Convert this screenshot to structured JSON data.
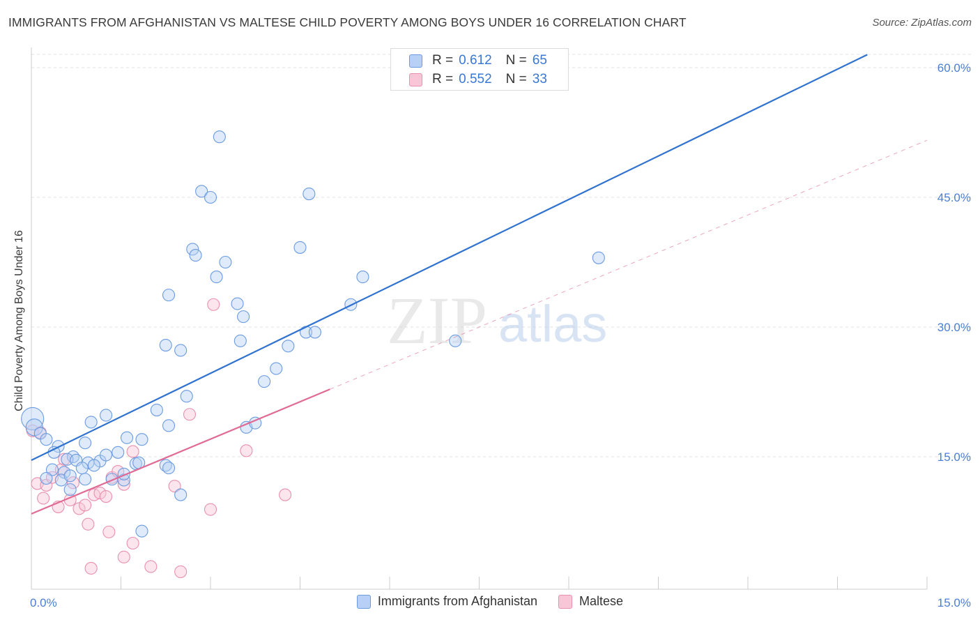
{
  "header": {
    "title": "IMMIGRANTS FROM AFGHANISTAN VS MALTESE CHILD POVERTY AMONG BOYS UNDER 16 CORRELATION CHART",
    "source": "Source: ZipAtlas.com"
  },
  "watermark": {
    "zip": "ZIP",
    "atlas": "atlas"
  },
  "colors": {
    "afghanistan_fill": "#b8d0f5",
    "afghanistan_stroke": "#6a9be0",
    "afghanistan_line": "#2f72d0",
    "maltese_fill": "#f8c6d6",
    "maltese_stroke": "#e890ae",
    "maltese_line": "#e06a94",
    "tick_label": "#4a7fd4"
  },
  "chart_data": {
    "type": "scatter",
    "xlabel": "",
    "ylabel": "Child Poverty Among Boys Under 16",
    "xlim": [
      0,
      15
    ],
    "ylim": [
      0,
      60
    ],
    "x_tick_labels": [
      {
        "value": 0,
        "label": "0.0%"
      },
      {
        "value": 15,
        "label": "15.0%"
      }
    ],
    "y_tick_labels": [
      {
        "value": 15,
        "label": "15.0%"
      },
      {
        "value": 30,
        "label": "30.0%"
      },
      {
        "value": 45,
        "label": "45.0%"
      },
      {
        "value": 60,
        "label": "60.0%"
      }
    ],
    "grid": true,
    "legend_stats": [
      {
        "r_label": "R =",
        "r_value": "0.612",
        "n_label": "N =",
        "n_value": "65"
      },
      {
        "r_label": "R =",
        "r_value": "0.552",
        "n_label": "N =",
        "n_value": "33"
      }
    ],
    "series": [
      {
        "name": "Immigrants from Afghanistan",
        "trend": {
          "x0": 0,
          "y0": 14.6,
          "x1": 14,
          "y1": 61.5
        },
        "points": [
          [
            0.02,
            19.4
          ],
          [
            0.05,
            18.4
          ],
          [
            0.15,
            17.7
          ],
          [
            0.25,
            17.0
          ],
          [
            0.45,
            16.2
          ],
          [
            0.38,
            15.5
          ],
          [
            0.7,
            15.0
          ],
          [
            0.9,
            16.6
          ],
          [
            0.6,
            14.7
          ],
          [
            0.75,
            14.6
          ],
          [
            0.95,
            14.3
          ],
          [
            1.15,
            14.5
          ],
          [
            0.35,
            13.5
          ],
          [
            0.55,
            13.2
          ],
          [
            0.85,
            13.7
          ],
          [
            1.05,
            14.0
          ],
          [
            1.25,
            15.2
          ],
          [
            1.45,
            15.5
          ],
          [
            1.6,
            17.2
          ],
          [
            1.75,
            14.2
          ],
          [
            0.25,
            12.5
          ],
          [
            0.5,
            12.3
          ],
          [
            0.65,
            12.8
          ],
          [
            0.9,
            12.4
          ],
          [
            1.35,
            12.4
          ],
          [
            1.55,
            12.3
          ],
          [
            1.8,
            14.3
          ],
          [
            1.85,
            17.0
          ],
          [
            2.25,
            14.0
          ],
          [
            0.65,
            11.2
          ],
          [
            1.25,
            19.8
          ],
          [
            1.0,
            19.0
          ],
          [
            2.1,
            20.4
          ],
          [
            2.3,
            18.6
          ],
          [
            2.6,
            22.0
          ],
          [
            2.25,
            27.9
          ],
          [
            2.5,
            27.3
          ],
          [
            2.3,
            33.7
          ],
          [
            2.7,
            39.0
          ],
          [
            2.75,
            38.3
          ],
          [
            2.85,
            45.7
          ],
          [
            3.0,
            45.0
          ],
          [
            3.15,
            52.0
          ],
          [
            3.1,
            35.8
          ],
          [
            3.25,
            37.5
          ],
          [
            3.45,
            32.7
          ],
          [
            3.55,
            31.2
          ],
          [
            3.6,
            18.4
          ],
          [
            3.75,
            18.9
          ],
          [
            3.5,
            28.4
          ],
          [
            3.9,
            23.7
          ],
          [
            4.1,
            25.2
          ],
          [
            4.3,
            27.8
          ],
          [
            4.6,
            29.4
          ],
          [
            4.75,
            29.4
          ],
          [
            4.5,
            39.2
          ],
          [
            4.65,
            45.4
          ],
          [
            5.35,
            32.6
          ],
          [
            5.55,
            35.8
          ],
          [
            7.1,
            28.4
          ],
          [
            9.5,
            38.0
          ],
          [
            2.3,
            13.7
          ],
          [
            1.55,
            13.0
          ],
          [
            2.5,
            10.6
          ],
          [
            1.85,
            6.4
          ]
        ]
      },
      {
        "name": "Maltese",
        "trend": {
          "x0": 0,
          "y0": 8.4,
          "x1": 15,
          "y1": 51.6,
          "solid_until_x": 5.0
        },
        "points": [
          [
            0.02,
            18.0
          ],
          [
            0.15,
            17.8
          ],
          [
            0.1,
            11.9
          ],
          [
            0.25,
            11.7
          ],
          [
            0.35,
            12.6
          ],
          [
            0.5,
            13.5
          ],
          [
            0.7,
            12.0
          ],
          [
            0.55,
            14.7
          ],
          [
            0.2,
            10.2
          ],
          [
            0.45,
            9.2
          ],
          [
            0.65,
            10.0
          ],
          [
            0.8,
            9.0
          ],
          [
            0.9,
            9.4
          ],
          [
            1.05,
            10.6
          ],
          [
            1.15,
            10.8
          ],
          [
            1.25,
            10.4
          ],
          [
            1.35,
            12.6
          ],
          [
            1.55,
            11.8
          ],
          [
            1.7,
            15.6
          ],
          [
            1.45,
            13.3
          ],
          [
            0.95,
            7.2
          ],
          [
            1.3,
            6.3
          ],
          [
            1.55,
            3.4
          ],
          [
            1.7,
            5.0
          ],
          [
            1.0,
            2.1
          ],
          [
            2.0,
            2.3
          ],
          [
            2.5,
            1.7
          ],
          [
            2.4,
            11.6
          ],
          [
            2.65,
            19.9
          ],
          [
            3.05,
            32.6
          ],
          [
            3.0,
            8.9
          ],
          [
            3.6,
            15.7
          ],
          [
            4.25,
            10.6
          ]
        ]
      }
    ]
  },
  "bottom_legend": {
    "items": [
      {
        "label": "Immigrants from Afghanistan"
      },
      {
        "label": "Maltese"
      }
    ]
  }
}
